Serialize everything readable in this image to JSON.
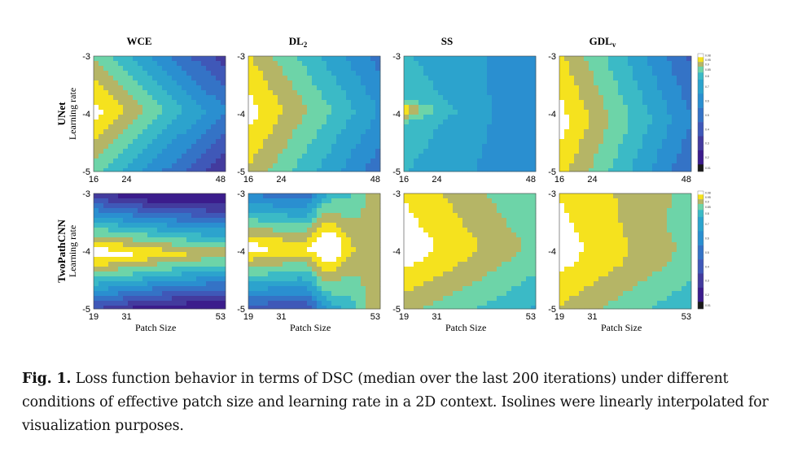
{
  "figure": {
    "columns": [
      "WCE",
      "DL2",
      "SS",
      "GDLv"
    ],
    "column_titles": [
      {
        "main": "WCE",
        "sub": ""
      },
      {
        "main": "DL",
        "sub": "2"
      },
      {
        "main": "SS",
        "sub": ""
      },
      {
        "main": "GDL",
        "sub": "v"
      }
    ],
    "rows": [
      {
        "name": "UNet",
        "ylabel": "Learning rate",
        "xticks": [
          "16",
          "24",
          "48"
        ],
        "yticks": [
          "-3",
          "-4",
          "-5"
        ]
      },
      {
        "name": "TwoPathCNN",
        "ylabel": "Learning rate",
        "xticks": [
          "19",
          "31",
          "53"
        ],
        "yticks": [
          "-3",
          "-4",
          "-5"
        ],
        "xlabel": "Patch Size"
      }
    ],
    "colorbar_ticks": [
      "0.98",
      "0.95",
      "0.9",
      "0.85",
      "0.8",
      "0.7",
      "0.6",
      "0.5",
      "0.4",
      "0.3",
      "0.2",
      "0.01"
    ],
    "colors": {
      "c0": "#1a1a1a",
      "c1": "#3b1c8c",
      "c2": "#433b9e",
      "c3": "#3f58b8",
      "c4": "#3473c6",
      "c5": "#2a8fd0",
      "c6": "#2ca3cd",
      "c7": "#3bbac6",
      "c8": "#6dd4a8",
      "c9": "#b5b566",
      "c10": "#f5e21e",
      "c11": "#ffffff"
    }
  },
  "chart_data": [
    {
      "type": "heatmap",
      "title": "WCE",
      "row": "UNet",
      "xlabel": "",
      "ylabel": "Learning rate",
      "x_ticks": [
        16,
        24,
        48
      ],
      "y_ticks": [
        -3,
        -4,
        -5
      ],
      "xlim": [
        16,
        48
      ],
      "ylim": [
        -5,
        -3
      ],
      "peak": {
        "x": 16,
        "y": -4
      }
    },
    {
      "type": "heatmap",
      "title": "DL2",
      "row": "UNet",
      "xlabel": "",
      "ylabel": "",
      "x_ticks": [
        16,
        24,
        48
      ],
      "y_ticks": [
        -3,
        -4,
        -5
      ],
      "xlim": [
        16,
        48
      ],
      "ylim": [
        -5,
        -3
      ],
      "peak": {
        "x": 16,
        "y": -4
      }
    },
    {
      "type": "heatmap",
      "title": "SS",
      "row": "UNet",
      "xlabel": "",
      "ylabel": "",
      "x_ticks": [
        16,
        24,
        48
      ],
      "y_ticks": [
        -3,
        -4,
        -5
      ],
      "xlim": [
        16,
        48
      ],
      "ylim": [
        -5,
        -3
      ],
      "peak": {
        "x": 16,
        "y": -4
      }
    },
    {
      "type": "heatmap",
      "title": "GDLv",
      "row": "UNet",
      "xlabel": "",
      "ylabel": "",
      "x_ticks": [
        16,
        24,
        48
      ],
      "y_ticks": [
        -3,
        -4,
        -5
      ],
      "xlim": [
        16,
        48
      ],
      "ylim": [
        -5,
        -3
      ],
      "peak": {
        "x": 16,
        "y": -4
      }
    },
    {
      "type": "heatmap",
      "title": "",
      "row": "TwoPathCNN",
      "xlabel": "Patch Size",
      "ylabel": "Learning rate",
      "x_ticks": [
        19,
        31,
        53
      ],
      "y_ticks": [
        -3,
        -4,
        -5
      ],
      "xlim": [
        19,
        53
      ],
      "ylim": [
        -5,
        -3
      ],
      "peak": {
        "x": 19,
        "y": -4
      }
    },
    {
      "type": "heatmap",
      "title": "",
      "row": "TwoPathCNN",
      "xlabel": "Patch Size",
      "ylabel": "",
      "x_ticks": [
        19,
        31,
        53
      ],
      "y_ticks": [
        -3,
        -4,
        -5
      ],
      "xlim": [
        19,
        53
      ],
      "ylim": [
        -5,
        -3
      ],
      "peak": {
        "x": 19,
        "y": -4
      }
    },
    {
      "type": "heatmap",
      "title": "",
      "row": "TwoPathCNN",
      "xlabel": "Patch Size",
      "ylabel": "",
      "x_ticks": [
        19,
        31,
        53
      ],
      "y_ticks": [
        -3,
        -4,
        -5
      ],
      "xlim": [
        19,
        53
      ],
      "ylim": [
        -5,
        -3
      ],
      "peak": {
        "x": 19,
        "y": -4
      }
    },
    {
      "type": "heatmap",
      "title": "",
      "row": "TwoPathCNN",
      "xlabel": "Patch Size",
      "ylabel": "",
      "x_ticks": [
        19,
        31,
        53
      ],
      "y_ticks": [
        -3,
        -4,
        -5
      ],
      "xlim": [
        19,
        53
      ],
      "ylim": [
        -5,
        -3
      ],
      "peak": {
        "x": 19,
        "y": -4
      }
    }
  ],
  "caption": {
    "label": "Fig. 1.",
    "text": " Loss function behavior in terms of DSC (median over the last 200 iterations) under different conditions of effective patch size and learning rate in a 2D context. Isolines were linearly interpolated for visualization purposes."
  }
}
